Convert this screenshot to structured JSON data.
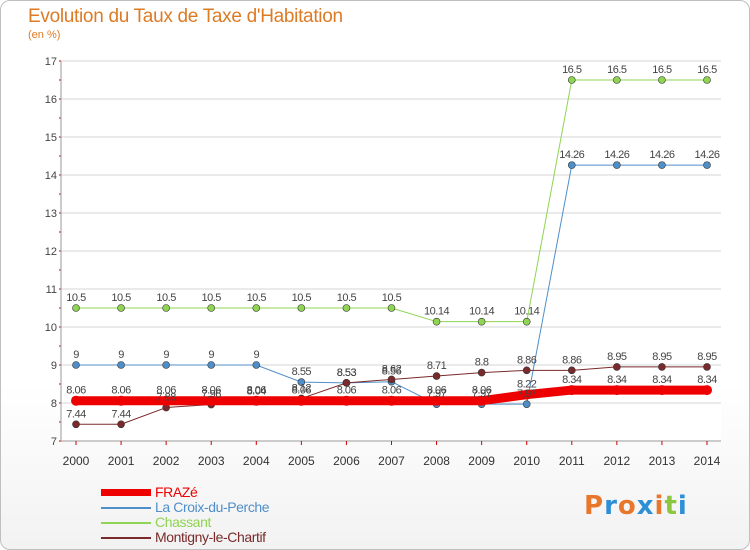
{
  "title": "Evolution du Taux de Taxe d'Habitation",
  "subtitle": "(en %)",
  "logo": {
    "text": "Proxiti",
    "letters": [
      "P",
      "r",
      "o",
      "x",
      "i",
      "t",
      "i"
    ],
    "colors": [
      "#e8762b",
      "#2d8fd5",
      "#e8762b",
      "#2d8fd5",
      "#e8762b",
      "#8dc63f",
      "#2d8fd5"
    ]
  },
  "chart_data": {
    "type": "line",
    "title": "Evolution du Taux de Taxe d'Habitation",
    "ylabel": "(en %)",
    "xlabel": "",
    "x": [
      2000,
      2001,
      2002,
      2003,
      2004,
      2005,
      2006,
      2007,
      2008,
      2009,
      2010,
      2011,
      2012,
      2013,
      2014
    ],
    "ylim": [
      7,
      17
    ],
    "yticks": [
      7,
      8,
      9,
      10,
      11,
      12,
      13,
      14,
      15,
      16,
      17
    ],
    "grid": "horizontal",
    "legend_position": "bottom-left",
    "series": [
      {
        "name": "FRAZé",
        "color": "#ee0000",
        "width": 9,
        "values": [
          8.06,
          8.06,
          8.06,
          8.06,
          8.06,
          8.06,
          8.06,
          8.06,
          8.06,
          8.06,
          8.22,
          8.34,
          8.34,
          8.34,
          8.34
        ],
        "labels": [
          "8.06",
          "8.06",
          "8.06",
          "8.06",
          "8.06",
          "8.06",
          "8.06",
          "8.06",
          "8.06",
          "8.06",
          "8.22",
          "8.34",
          "8.34",
          "8.34",
          "8.34"
        ]
      },
      {
        "name": "La Croix-du-Perche",
        "color": "#4f8fc9",
        "width": 1,
        "values": [
          9,
          9,
          9,
          9,
          9,
          8.55,
          8.53,
          8.56,
          7.97,
          7.97,
          7.97,
          14.26,
          14.26,
          14.26,
          14.26
        ],
        "labels": [
          "9",
          "9",
          "9",
          "9",
          "9",
          "8.55",
          "8.53",
          "8.56",
          "7.97",
          "7.97",
          "7.97",
          "14.26",
          "14.26",
          "14.26",
          "14.26"
        ]
      },
      {
        "name": "Chassant",
        "color": "#8fd452",
        "width": 1,
        "values": [
          10.5,
          10.5,
          10.5,
          10.5,
          10.5,
          10.5,
          10.5,
          10.5,
          10.14,
          10.14,
          10.14,
          16.5,
          16.5,
          16.5,
          16.5
        ],
        "labels": [
          "10.5",
          "10.5",
          "10.5",
          "10.5",
          "10.5",
          "10.5",
          "10.5",
          "10.5",
          "10.14",
          "10.14",
          "10.14",
          "16.5",
          "16.5",
          "16.5",
          "16.5"
        ]
      },
      {
        "name": "Montigny-le-Chartif",
        "color": "#7a2a2a",
        "width": 1,
        "values": [
          7.44,
          7.44,
          7.88,
          7.96,
          8.04,
          8.12,
          8.53,
          8.62,
          8.71,
          8.8,
          8.86,
          8.86,
          8.95,
          8.95,
          8.95
        ],
        "labels": [
          "7.44",
          "7.44",
          "7.88",
          "7.96",
          "8.04",
          "8.12",
          "8.53",
          "8.62",
          "8.71",
          "8.8",
          "8.86",
          "8.86",
          "8.95",
          "8.95",
          "8.95"
        ]
      }
    ]
  }
}
